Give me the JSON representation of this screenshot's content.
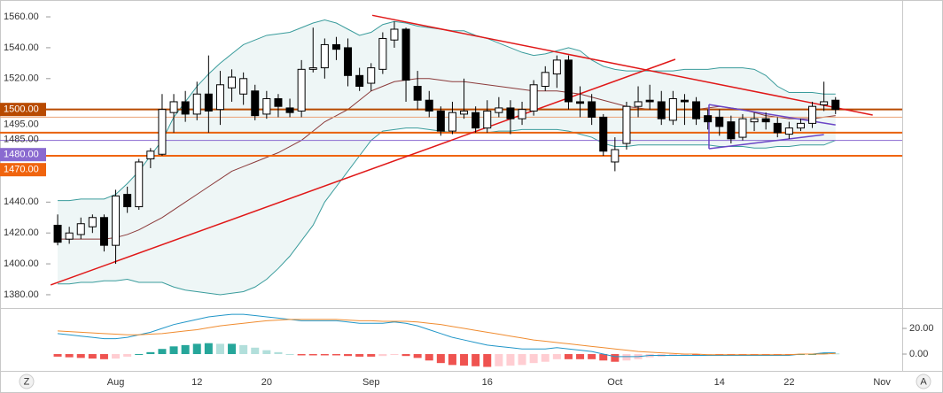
{
  "chart_data": {
    "type": "candlestick",
    "categories": [
      null,
      null,
      null,
      null,
      null,
      "Aug",
      null,
      null,
      null,
      null,
      null,
      null,
      "12",
      null,
      null,
      null,
      null,
      null,
      "20",
      null,
      null,
      null,
      null,
      null,
      null,
      null,
      null,
      "Sep",
      null,
      null,
      null,
      null,
      null,
      null,
      null,
      null,
      null,
      "16",
      null,
      null,
      null,
      null,
      null,
      null,
      null,
      null,
      null,
      null,
      "Oct",
      null,
      null,
      null,
      null,
      null,
      null,
      null,
      null,
      "14",
      null,
      null,
      null,
      null,
      null,
      "22",
      null,
      null,
      null,
      null,
      null,
      null,
      null,
      "Nov"
    ],
    "open": [
      1425,
      1416,
      1419,
      1424,
      1430,
      1412,
      1445,
      1437,
      1468,
      1471,
      1498,
      1505,
      1497,
      1510,
      1500,
      1514,
      1510,
      1512,
      1497,
      1507,
      1501,
      1499,
      1526,
      1527,
      1542,
      1540,
      1522,
      1517,
      1526,
      1545,
      1552,
      1515,
      1506,
      1499,
      1486,
      1497,
      1498,
      1488,
      1498,
      1501,
      1494,
      1499,
      1515,
      1523,
      1532,
      1505,
      1505,
      1495,
      1466,
      1478,
      1502,
      1506,
      1505,
      1493,
      1506,
      1505,
      1496,
      1495,
      1492,
      1482,
      1492,
      1494,
      1491,
      1484,
      1488,
      1491,
      1503,
      1506,
      null,
      null,
      null,
      null
    ],
    "high": [
      1432,
      1424,
      1430,
      1432,
      1432,
      1448,
      1450,
      1468,
      1475,
      1510,
      1510,
      1512,
      1518,
      1535,
      1525,
      1526,
      1524,
      1516,
      1512,
      1510,
      1507,
      1532,
      1553,
      1546,
      1547,
      1546,
      1527,
      1530,
      1550,
      1557,
      1553,
      1525,
      1512,
      1502,
      1505,
      1520,
      1502,
      1506,
      1508,
      1506,
      1505,
      1519,
      1528,
      1535,
      1535,
      1515,
      1510,
      1497,
      1482,
      1505,
      1515,
      1516,
      1512,
      1512,
      1510,
      1508,
      1500,
      1500,
      1496,
      1497,
      1498,
      1498,
      1495,
      1492,
      1494,
      1505,
      1518,
      1508,
      null,
      null,
      null,
      null
    ],
    "low": [
      1412,
      1413,
      1416,
      1420,
      1408,
      1400,
      1433,
      1435,
      1462,
      1470,
      1485,
      1492,
      1493,
      1485,
      1490,
      1505,
      1503,
      1493,
      1494,
      1495,
      1495,
      1495,
      1524,
      1520,
      1532,
      1515,
      1512,
      1512,
      1523,
      1540,
      1505,
      1500,
      1495,
      1483,
      1484,
      1494,
      1485,
      1485,
      1495,
      1484,
      1490,
      1496,
      1512,
      1514,
      1500,
      1495,
      1490,
      1470,
      1460,
      1474,
      1495,
      1500,
      1490,
      1490,
      1490,
      1490,
      1487,
      1483,
      1478,
      1480,
      1486,
      1487,
      1482,
      1481,
      1486,
      1488,
      1499,
      1497,
      null,
      null,
      null,
      null
    ],
    "close": [
      1414,
      1420,
      1426,
      1430,
      1412,
      1444,
      1437,
      1466,
      1473,
      1500,
      1505,
      1497,
      1510,
      1499,
      1516,
      1521,
      1520,
      1496,
      1507,
      1502,
      1498,
      1526,
      1527,
      1542,
      1539,
      1522,
      1515,
      1527,
      1546,
      1552,
      1519,
      1506,
      1499,
      1486,
      1498,
      1499,
      1488,
      1499,
      1501,
      1494,
      1500,
      1516,
      1524,
      1532,
      1505,
      1504,
      1495,
      1473,
      1474,
      1502,
      1505,
      1505,
      1494,
      1507,
      1505,
      1494,
      1492,
      1489,
      1481,
      1494,
      1494,
      1492,
      1485,
      1488,
      1491,
      1502,
      1505,
      1500,
      null,
      null,
      null,
      null
    ],
    "up_color": "#ffffff",
    "down_color": "#000000",
    "bands": [
      {
        "color": "#3a9c9c",
        "values": [
          1441,
          1441,
          1442,
          1442,
          1442,
          1445,
          1452,
          1460,
          1470,
          1480,
          1495,
          1505,
          1515,
          1523,
          1530,
          1536,
          1542,
          1545,
          1548,
          1549,
          1550,
          1553,
          1556,
          1558,
          1556,
          1552,
          1548,
          1550,
          1555,
          1557,
          1556,
          1554,
          1553,
          1552,
          1551,
          1551,
          1548,
          1546,
          1543,
          1540,
          1537,
          1535,
          1536,
          1538,
          1540,
          1538,
          1532,
          1528,
          1526,
          1525,
          1525,
          1525,
          1525,
          1525,
          1526,
          1526,
          1526,
          1527,
          1527,
          1527,
          1526,
          1522,
          1515,
          1511,
          1511,
          1511,
          1510,
          1510,
          null,
          null,
          null,
          null
        ]
      },
      {
        "color": "#8b3a3a",
        "values": [
          1416,
          1416,
          1416,
          1416,
          1416,
          1417,
          1419,
          1422,
          1426,
          1430,
          1435,
          1440,
          1445,
          1450,
          1455,
          1460,
          1463,
          1466,
          1469,
          1472,
          1476,
          1480,
          1486,
          1492,
          1496,
          1500,
          1506,
          1512,
          1515,
          1518,
          1519,
          1520,
          1520,
          1519,
          1518,
          1518,
          1517,
          1516,
          1515,
          1514,
          1513,
          1512,
          1512,
          1512,
          1511,
          1510,
          1508,
          1506,
          1504,
          1502,
          1501,
          1500,
          1500,
          1500,
          1500,
          1500,
          1501,
          1502,
          1501,
          1500,
          1498,
          1496,
          1495,
          1494,
          1494,
          1494,
          1495,
          1496,
          null,
          null,
          null,
          null
        ]
      },
      {
        "color": "#3a9c9c",
        "values": [
          1387,
          1387,
          1388,
          1388,
          1389,
          1389,
          1390,
          1388,
          1388,
          1388,
          1385,
          1383,
          1382,
          1381,
          1380,
          1381,
          1382,
          1385,
          1390,
          1397,
          1405,
          1415,
          1425,
          1440,
          1450,
          1460,
          1470,
          1480,
          1486,
          1487,
          1488,
          1488,
          1487,
          1486,
          1485,
          1485,
          1485,
          1485,
          1486,
          1486,
          1487,
          1487,
          1487,
          1487,
          1486,
          1484,
          1482,
          1478,
          1476,
          1476,
          1477,
          1477,
          1477,
          1477,
          1477,
          1477,
          1477,
          1476,
          1476,
          1476,
          1475,
          1475,
          1476,
          1476,
          1477,
          1477,
          1477,
          1480,
          null,
          null,
          null,
          null
        ]
      }
    ],
    "band_fill": "#eef6f6",
    "levels": [
      {
        "value": 1500,
        "label": "1500.00",
        "color": "#b84a00",
        "width": 2,
        "box": true
      },
      {
        "value": 1495,
        "label": "1495.00",
        "color": "#eba276",
        "width": 1,
        "box": false
      },
      {
        "value": 1485,
        "label": "1485.00",
        "color": "#e8620f",
        "width": 2,
        "box": false
      },
      {
        "value": 1480,
        "label": "1480.00",
        "color": "#8a6ad0",
        "width": 1,
        "box": true
      },
      {
        "value": 1470,
        "label": "1470.00",
        "color": "#f0640e",
        "width": 2,
        "box": true
      }
    ],
    "trendlines": [
      {
        "color": "#e01818",
        "points": [
          [
            -0.6,
            1386.3
          ],
          [
            53.2,
            1532.5
          ]
        ]
      },
      {
        "color": "#e01818",
        "points": [
          [
            27.1,
            1561
          ],
          [
            70.2,
            1496.4
          ]
        ]
      },
      {
        "color": "#6a46c6",
        "points": [
          [
            56.1,
            1503.2
          ],
          [
            67.0,
            1490
          ]
        ]
      },
      {
        "color": "#6a46c6",
        "points": [
          [
            56.1,
            1474.6
          ],
          [
            66.0,
            1483.7
          ]
        ]
      },
      {
        "color": "#6a46c6",
        "points": [
          [
            56.1,
            1503.2
          ],
          [
            56.1,
            1474.6
          ]
        ]
      }
    ],
    "ylim": [
      1373.1,
      1569.2
    ],
    "yticks": [
      {
        "value": 1380,
        "label": "1380.00"
      },
      {
        "value": 1400,
        "label": "1400.00"
      },
      {
        "value": 1420,
        "label": "1420.00"
      },
      {
        "value": 1440,
        "label": "1440.00"
      },
      {
        "value": 1520,
        "label": "1520.00"
      },
      {
        "value": 1540,
        "label": "1540.00"
      },
      {
        "value": 1560,
        "label": "1560.00"
      }
    ],
    "macd": {
      "y2lim": [
        -12.4,
        34.5
      ],
      "y2ticks": [
        {
          "value": 0,
          "label": "0.00"
        },
        {
          "value": 20,
          "label": "20.00"
        }
      ],
      "histogram": [
        -2,
        -2.5,
        -3,
        -3.5,
        -4,
        -3.5,
        -2,
        0,
        1.5,
        4,
        6,
        7,
        8,
        8.5,
        8,
        8,
        7,
        5,
        3,
        1.5,
        0,
        -1,
        -1,
        -1,
        -1,
        -1.5,
        -2,
        -2,
        -1.5,
        -0.5,
        -1.5,
        -3,
        -5,
        -7,
        -8.5,
        -9,
        -9.5,
        -10,
        -9.5,
        -9,
        -8.5,
        -7,
        -6,
        -4,
        -4,
        -4,
        -4,
        -5,
        -6,
        -5,
        -4,
        -2.5,
        -2,
        -1.5,
        -1,
        -1,
        -0.5,
        -0.5,
        -0.5,
        -0.5,
        -0.5,
        -0.5,
        -0.5,
        -0.5,
        0,
        0,
        1,
        0.5,
        null,
        null,
        null,
        null
      ],
      "histogram_colors": {
        "up_grow": "#26a69a",
        "up_fall": "#b2dfdb",
        "down_grow": "#ffcdd2",
        "down_fall": "#ef5350"
      },
      "series": [
        {
          "color": "#2196c8",
          "values": [
            16,
            15,
            14,
            13,
            12,
            12,
            13,
            15,
            17,
            20,
            23,
            25,
            27,
            29,
            30,
            31,
            31,
            30,
            29,
            28,
            27,
            26,
            26,
            26,
            26,
            25,
            24,
            24,
            24,
            25,
            24,
            22,
            19,
            16,
            13,
            11,
            9,
            7,
            6,
            5,
            4,
            4,
            4,
            5,
            4,
            3,
            2,
            0,
            -2,
            -2,
            -2,
            -1,
            -1,
            -1,
            -1,
            -1,
            -1,
            -1,
            -1,
            -1,
            -1,
            -1,
            -1,
            -1,
            0,
            0,
            1,
            1,
            null,
            null,
            null,
            null
          ]
        },
        {
          "color": "#f08c30",
          "values": [
            18,
            17.5,
            17,
            16.5,
            16,
            15.5,
            15,
            15,
            15.5,
            16,
            17,
            18,
            19,
            20.5,
            22,
            23,
            24,
            25,
            26,
            26.5,
            27,
            27,
            27,
            27,
            27,
            26.5,
            26,
            26,
            25.5,
            25.5,
            25.5,
            25,
            24,
            23,
            21.5,
            20,
            18.5,
            17,
            15.5,
            14,
            12.5,
            11,
            10,
            9,
            8,
            7,
            6,
            5,
            4,
            3,
            2,
            1.5,
            1,
            0.5,
            0,
            0,
            -0.5,
            -0.5,
            -0.5,
            -0.5,
            -0.5,
            -0.5,
            -0.5,
            -0.5,
            0,
            0,
            0,
            0.5,
            null,
            null,
            null,
            null
          ]
        }
      ]
    },
    "buttons": [
      "Z",
      "A"
    ]
  }
}
